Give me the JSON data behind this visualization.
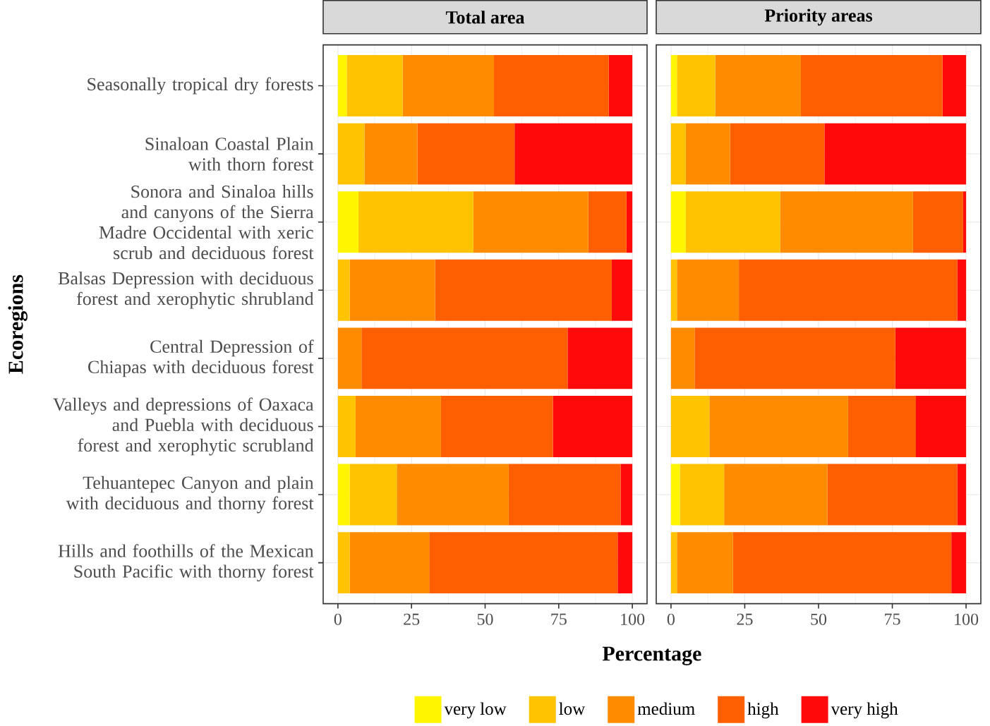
{
  "chart_data": [
    {
      "type": "bar",
      "title": "Total area",
      "xlabel": "Percentage",
      "ylabel": "Ecoregions",
      "orientation": "horizontal",
      "stacked": true,
      "grid": true,
      "legend": "bottom",
      "xlim": [
        -5,
        105
      ],
      "xticks": [
        0,
        25,
        50,
        75,
        100
      ],
      "categories": [
        "Seasonally tropical dry forests",
        "Sinaloan Coastal Plain with thorn forest",
        "Sonora and Sinaloa hills and canyons of the Sierra Madre Occidental with xeric scrub and deciduous forest",
        "Balsas Depression with deciduous forest and xerophytic shrubland",
        "Central Depression of Chiapas with deciduous forest",
        "Valleys and depressions of Oaxaca and Puebla with deciduous forest and xerophytic scrubland",
        "Tehuantepec Canyon and plain with deciduous and thorny forest",
        "Hills and foothills of the Mexican South Pacific with thorny forest"
      ],
      "series": [
        {
          "name": "very low",
          "color": "#fff500",
          "values": [
            3,
            0,
            7,
            0,
            0,
            0,
            4,
            0
          ]
        },
        {
          "name": "low",
          "color": "#ffc300",
          "values": [
            19,
            9,
            39,
            4,
            0,
            6,
            16,
            4
          ]
        },
        {
          "name": "medium",
          "color": "#ff8c00",
          "values": [
            31,
            18,
            39,
            29,
            8,
            29,
            38,
            27
          ]
        },
        {
          "name": "high",
          "color": "#ff5f00",
          "values": [
            39,
            33,
            13,
            60,
            70,
            38,
            38,
            64
          ]
        },
        {
          "name": "very high",
          "color": "#ff0a0a",
          "values": [
            8,
            40,
            2,
            7,
            22,
            27,
            4,
            5
          ]
        }
      ]
    },
    {
      "type": "bar",
      "title": "Priority areas",
      "orientation": "horizontal",
      "stacked": true,
      "grid": true,
      "tick_labels": "x",
      "xlim": [
        -5,
        105
      ],
      "xticks": [
        0,
        25,
        50,
        75,
        100
      ],
      "series": [
        {
          "color": "#fff500",
          "values": [
            2,
            0,
            5,
            0,
            0,
            0,
            3,
            0
          ]
        },
        {
          "color": "#ffc300",
          "values": [
            13,
            5,
            32,
            2,
            0,
            13,
            15,
            2
          ]
        },
        {
          "color": "#ff8c00",
          "values": [
            29,
            15,
            45,
            21,
            8,
            47,
            35,
            19
          ]
        },
        {
          "color": "#ff5f00",
          "values": [
            48,
            32,
            17,
            74,
            68,
            23,
            44,
            74
          ]
        },
        {
          "color": "#ff0a0a",
          "values": [
            8,
            48,
            1,
            3,
            24,
            17,
            3,
            5
          ]
        }
      ]
    }
  ]
}
